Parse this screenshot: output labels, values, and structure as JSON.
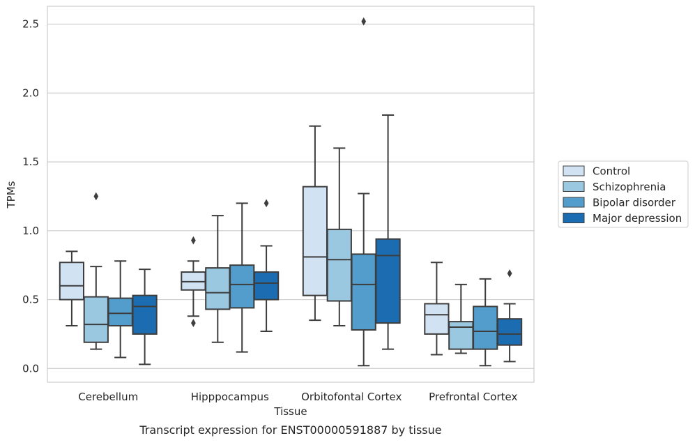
{
  "chart_data": {
    "type": "box",
    "title": "",
    "caption": "Transcript expression for ENST00000591887 by tissue",
    "xlabel": "Tissue",
    "ylabel": "TPMs",
    "ylim": [
      -0.1,
      2.63
    ],
    "yticks": [
      0.0,
      0.5,
      1.0,
      1.5,
      2.0,
      2.5
    ],
    "ytick_labels": [
      "0.0",
      "0.5",
      "1.0",
      "1.5",
      "2.0",
      "2.5"
    ],
    "grid": "horizontal",
    "legend_position": "right",
    "categories": [
      "Cerebellum",
      "Hipppocampus",
      "Orbitofontal Cortex",
      "Prefrontal Cortex"
    ],
    "series": [
      {
        "name": "Control",
        "color": "#d1e2f2",
        "boxes": [
          {
            "whisker_low": 0.31,
            "q1": 0.5,
            "median": 0.6,
            "q3": 0.77,
            "whisker_high": 0.85,
            "outliers": []
          },
          {
            "whisker_low": 0.38,
            "q1": 0.57,
            "median": 0.63,
            "q3": 0.7,
            "whisker_high": 0.78,
            "outliers": [
              0.93,
              0.33
            ]
          },
          {
            "whisker_low": 0.35,
            "q1": 0.53,
            "median": 0.81,
            "q3": 1.32,
            "whisker_high": 1.76,
            "outliers": []
          },
          {
            "whisker_low": 0.1,
            "q1": 0.25,
            "median": 0.39,
            "q3": 0.47,
            "whisker_high": 0.77,
            "outliers": []
          }
        ]
      },
      {
        "name": "Schizophrenia",
        "color": "#9ac8e0",
        "boxes": [
          {
            "whisker_low": 0.14,
            "q1": 0.19,
            "median": 0.32,
            "q3": 0.52,
            "whisker_high": 0.74,
            "outliers": [
              1.25
            ]
          },
          {
            "whisker_low": 0.19,
            "q1": 0.43,
            "median": 0.55,
            "q3": 0.73,
            "whisker_high": 1.11,
            "outliers": []
          },
          {
            "whisker_low": 0.31,
            "q1": 0.49,
            "median": 0.79,
            "q3": 1.01,
            "whisker_high": 1.6,
            "outliers": []
          },
          {
            "whisker_low": 0.11,
            "q1": 0.14,
            "median": 0.3,
            "q3": 0.34,
            "whisker_high": 0.61,
            "outliers": []
          }
        ]
      },
      {
        "name": "Bipolar disorder",
        "color": "#529dcc",
        "boxes": [
          {
            "whisker_low": 0.08,
            "q1": 0.31,
            "median": 0.4,
            "q3": 0.51,
            "whisker_high": 0.78,
            "outliers": []
          },
          {
            "whisker_low": 0.12,
            "q1": 0.44,
            "median": 0.61,
            "q3": 0.75,
            "whisker_high": 1.2,
            "outliers": []
          },
          {
            "whisker_low": 0.02,
            "q1": 0.28,
            "median": 0.61,
            "q3": 0.83,
            "whisker_high": 1.27,
            "outliers": [
              2.52
            ]
          },
          {
            "whisker_low": 0.02,
            "q1": 0.14,
            "median": 0.27,
            "q3": 0.45,
            "whisker_high": 0.65,
            "outliers": []
          }
        ]
      },
      {
        "name": "Major depression",
        "color": "#1c6cb1",
        "boxes": [
          {
            "whisker_low": 0.03,
            "q1": 0.25,
            "median": 0.45,
            "q3": 0.53,
            "whisker_high": 0.72,
            "outliers": []
          },
          {
            "whisker_low": 0.27,
            "q1": 0.5,
            "median": 0.62,
            "q3": 0.7,
            "whisker_high": 0.89,
            "outliers": [
              1.2
            ]
          },
          {
            "whisker_low": 0.14,
            "q1": 0.33,
            "median": 0.82,
            "q3": 0.94,
            "whisker_high": 1.84,
            "outliers": []
          },
          {
            "whisker_low": 0.05,
            "q1": 0.17,
            "median": 0.25,
            "q3": 0.36,
            "whisker_high": 0.47,
            "outliers": [
              0.69
            ]
          }
        ]
      }
    ]
  }
}
